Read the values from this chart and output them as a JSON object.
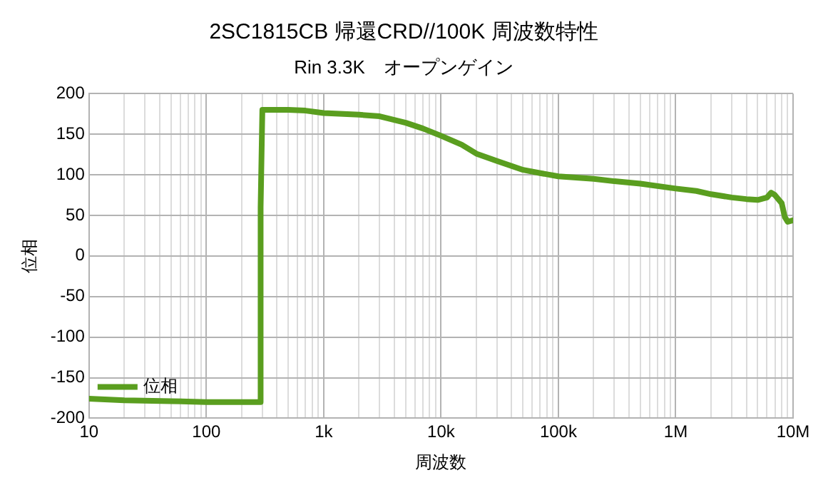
{
  "chart_data": {
    "type": "line",
    "title": "2SC1815CB 帰還CRD//100K 周波数特性",
    "subtitle": "Rin 3.3K　オープンゲイン",
    "xlabel": "周波数",
    "ylabel": "位相",
    "log": "x",
    "grid": true,
    "legend": "bottom left",
    "marker": "none",
    "line_style": "solid",
    "xlim": [
      10,
      10000000
    ],
    "ylim": [
      -200,
      200
    ],
    "yticks": [
      -200,
      -150,
      -100,
      -50,
      0,
      50,
      100,
      150,
      200
    ],
    "xticks": [
      10,
      {
        "value": 20,
        "label": null
      },
      {
        "value": 30,
        "label": null
      },
      {
        "value": 40,
        "label": null
      },
      {
        "value": 50,
        "label": null
      },
      {
        "value": 60,
        "label": null
      },
      {
        "value": 70,
        "label": null
      },
      {
        "value": 80,
        "label": null
      },
      {
        "value": 90,
        "label": null
      },
      100,
      {
        "value": 200,
        "label": null
      },
      {
        "value": 300,
        "label": null
      },
      {
        "value": 400,
        "label": null
      },
      {
        "value": 500,
        "label": null
      },
      {
        "value": 600,
        "label": null
      },
      {
        "value": 700,
        "label": null
      },
      {
        "value": 800,
        "label": null
      },
      {
        "value": 900,
        "label": null
      },
      {
        "value": 1000,
        "label": "1k"
      },
      {
        "value": 2000,
        "label": null
      },
      {
        "value": 3000,
        "label": null
      },
      {
        "value": 4000,
        "label": null
      },
      {
        "value": 5000,
        "label": null
      },
      {
        "value": 6000,
        "label": null
      },
      {
        "value": 7000,
        "label": null
      },
      {
        "value": 8000,
        "label": null
      },
      {
        "value": 9000,
        "label": null
      },
      {
        "value": 10000,
        "label": "10k"
      },
      {
        "value": 20000,
        "label": null
      },
      {
        "value": 30000,
        "label": null
      },
      {
        "value": 40000,
        "label": null
      },
      {
        "value": 50000,
        "label": null
      },
      {
        "value": 60000,
        "label": null
      },
      {
        "value": 70000,
        "label": null
      },
      {
        "value": 80000,
        "label": null
      },
      {
        "value": 90000,
        "label": null
      },
      {
        "value": 100000,
        "label": "100k"
      },
      {
        "value": 200000,
        "label": null
      },
      {
        "value": 300000,
        "label": null
      },
      {
        "value": 400000,
        "label": null
      },
      {
        "value": 500000,
        "label": null
      },
      {
        "value": 600000,
        "label": null
      },
      {
        "value": 700000,
        "label": null
      },
      {
        "value": 800000,
        "label": null
      },
      {
        "value": 900000,
        "label": null
      },
      {
        "value": 1000000,
        "label": "1M"
      },
      {
        "value": 2000000,
        "label": null
      },
      {
        "value": 3000000,
        "label": null
      },
      {
        "value": 4000000,
        "label": null
      },
      {
        "value": 5000000,
        "label": null
      },
      {
        "value": 6000000,
        "label": null
      },
      {
        "value": 7000000,
        "label": null
      },
      {
        "value": 8000000,
        "label": null
      },
      {
        "value": 9000000,
        "label": null
      },
      {
        "value": 10000000,
        "label": "10M"
      }
    ],
    "series": [
      {
        "name": "位相",
        "color": "#5a9e1f",
        "x": [
          10,
          20,
          50,
          100,
          200,
          285,
          290,
          300,
          500,
          700,
          1000,
          2000,
          3000,
          5000,
          7000,
          10000,
          15000,
          20000,
          30000,
          50000,
          70000,
          100000,
          200000,
          300000,
          500000,
          1000000,
          1500000,
          2000000,
          3000000,
          4000000,
          5000000,
          6000000,
          6500000,
          7000000,
          8000000,
          8500000,
          9000000,
          10000000
        ],
        "values": [
          -176,
          -178,
          -179,
          -180,
          -180,
          -180,
          60,
          180,
          180,
          179,
          176,
          174,
          172,
          164,
          157,
          148,
          137,
          126,
          117,
          106,
          102,
          98,
          95,
          92,
          89,
          83,
          80,
          76,
          72,
          70,
          69,
          72,
          78,
          75,
          65,
          48,
          42,
          44
        ]
      }
    ]
  }
}
